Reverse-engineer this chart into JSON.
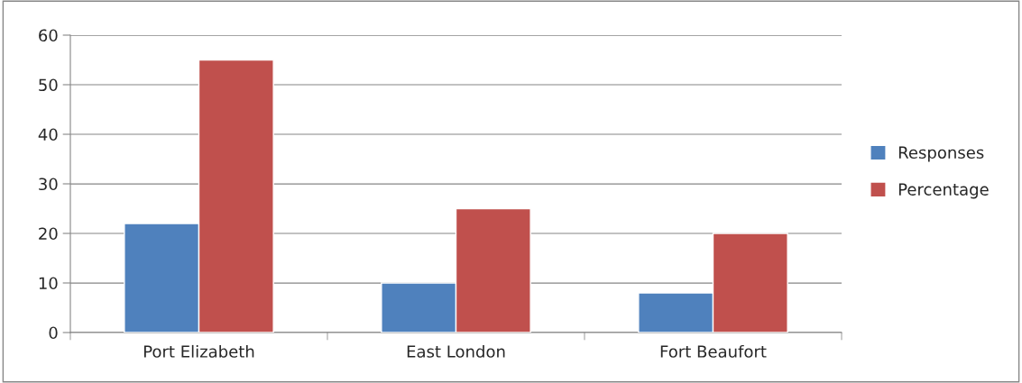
{
  "chart_data": {
    "type": "bar",
    "categories": [
      "Port Elizabeth",
      "East London",
      "Fort Beaufort"
    ],
    "series": [
      {
        "name": "Responses",
        "color": "#4f81bd",
        "values": [
          22,
          10,
          8
        ]
      },
      {
        "name": "Percentage",
        "color": "#c0504d",
        "values": [
          55,
          25,
          20
        ]
      }
    ],
    "ylim": [
      0,
      60
    ],
    "yticks": [
      0,
      10,
      20,
      30,
      40,
      50,
      60
    ],
    "grid": "y",
    "legend": "right"
  }
}
